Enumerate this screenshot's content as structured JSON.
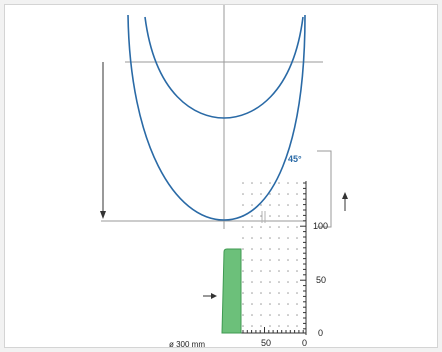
{
  "diagram": {
    "angle_label": "45°",
    "diameter_label": "ø 300 mm",
    "scale_ticks": {
      "right": [
        "100",
        "50",
        "0"
      ],
      "bottom": [
        "50",
        "0"
      ]
    },
    "colors": {
      "curve": "#2a6aa6",
      "fill_bar": "#6cc07a",
      "fill_bar_edge": "#3f9a52",
      "lines": "#333333",
      "guide": "#9a9a9a",
      "label_blue": "#2a6aa6"
    },
    "icons": [
      "arrow-up-icon",
      "arrow-right-icon",
      "arrow-down-icon"
    ]
  }
}
